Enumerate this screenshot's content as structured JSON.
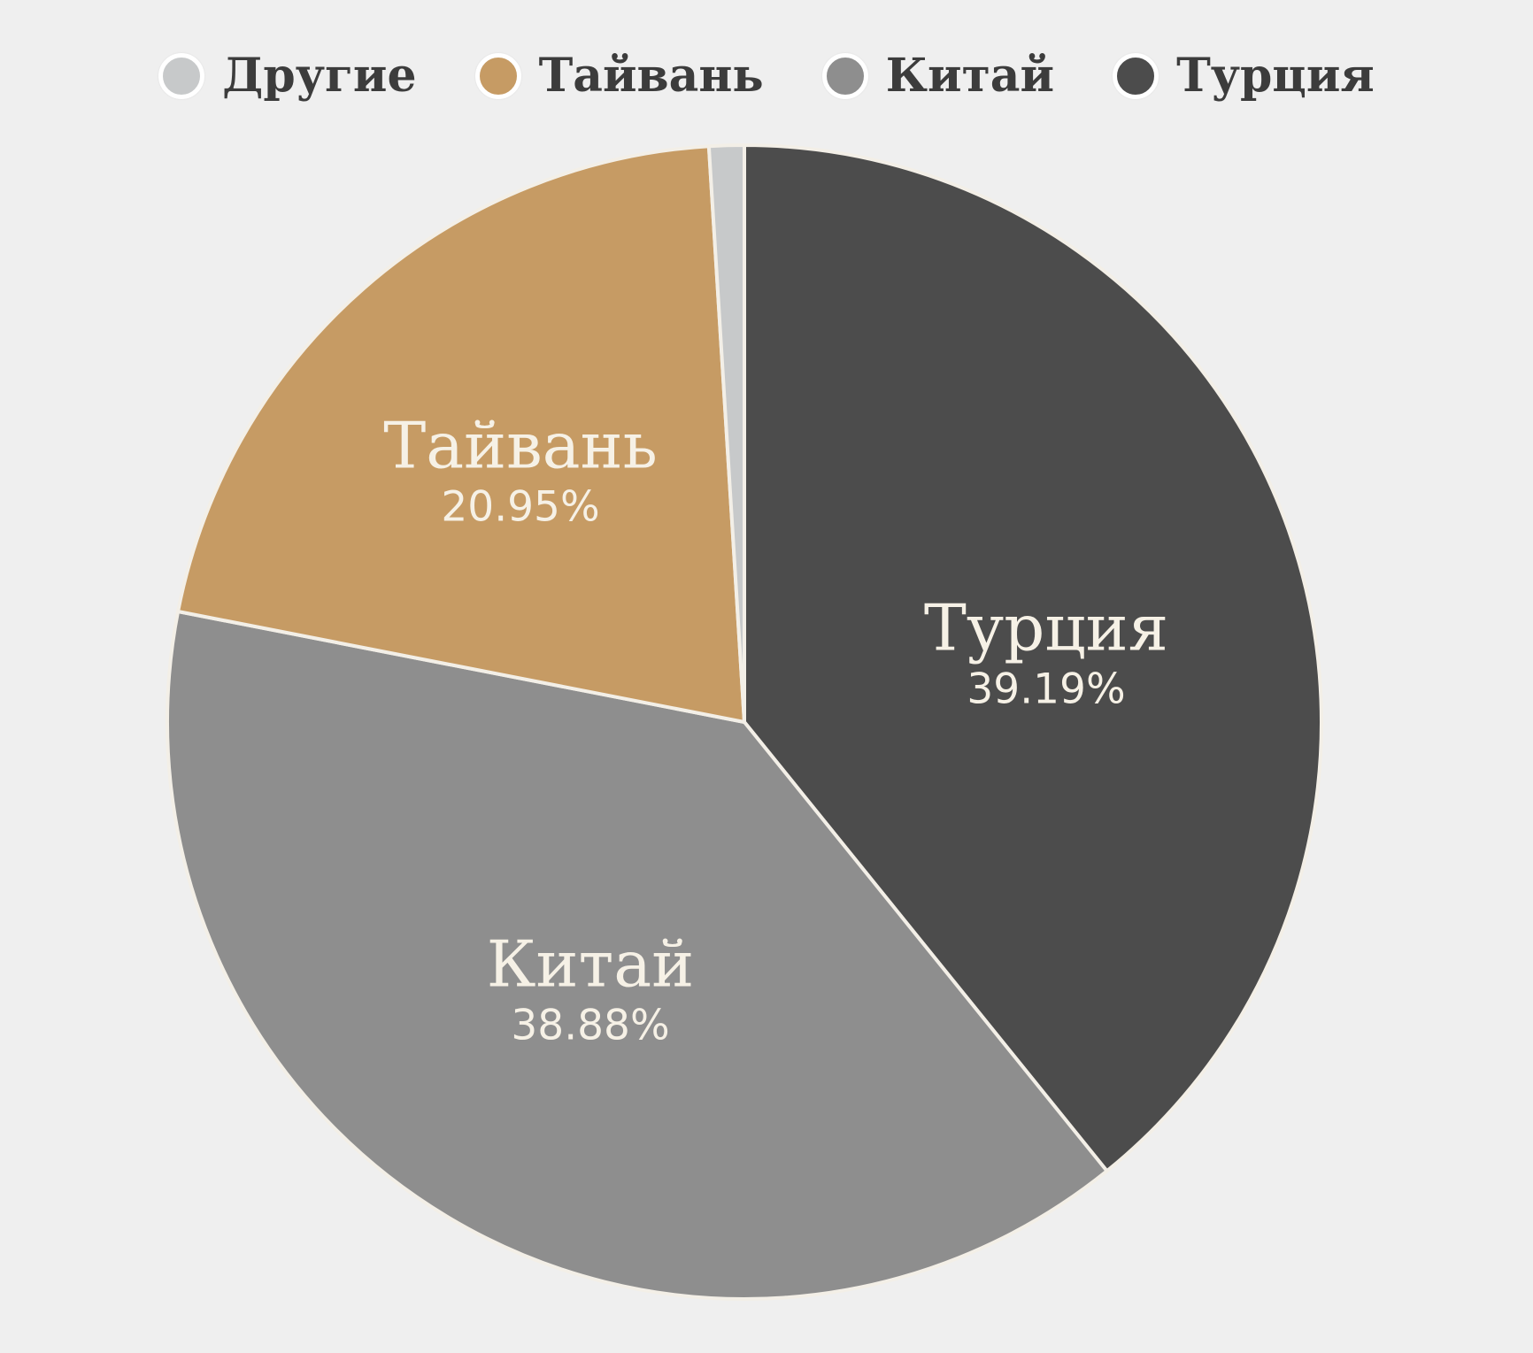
{
  "background_color": "#efefef",
  "legend": {
    "items": [
      {
        "label": "Другие",
        "color": "#c7c9ca"
      },
      {
        "label": "Тайвань",
        "color": "#c69b64"
      },
      {
        "label": "Китай",
        "color": "#8e8e8e"
      },
      {
        "label": "Турция",
        "color": "#4c4c4c"
      }
    ]
  },
  "chart_data": {
    "type": "pie",
    "title": "",
    "legend_position": "top",
    "start_angle_deg_from_top": 0,
    "direction": "clockwise",
    "slices": [
      {
        "id": "turkey",
        "label": "Турция",
        "value": 39.19,
        "pct_text": "39.19%",
        "color": "#4c4c4c",
        "label_shown_on_slice": true
      },
      {
        "id": "china",
        "label": "Китай",
        "value": 38.88,
        "pct_text": "38.88%",
        "color": "#8e8e8e",
        "label_shown_on_slice": true
      },
      {
        "id": "taiwan",
        "label": "Тайвань",
        "value": 20.95,
        "pct_text": "20.95%",
        "color": "#c69b64",
        "label_shown_on_slice": true
      },
      {
        "id": "others",
        "label": "Другие",
        "value": 0.98,
        "pct_text": "",
        "color": "#c7c9ca",
        "label_shown_on_slice": false
      }
    ]
  }
}
